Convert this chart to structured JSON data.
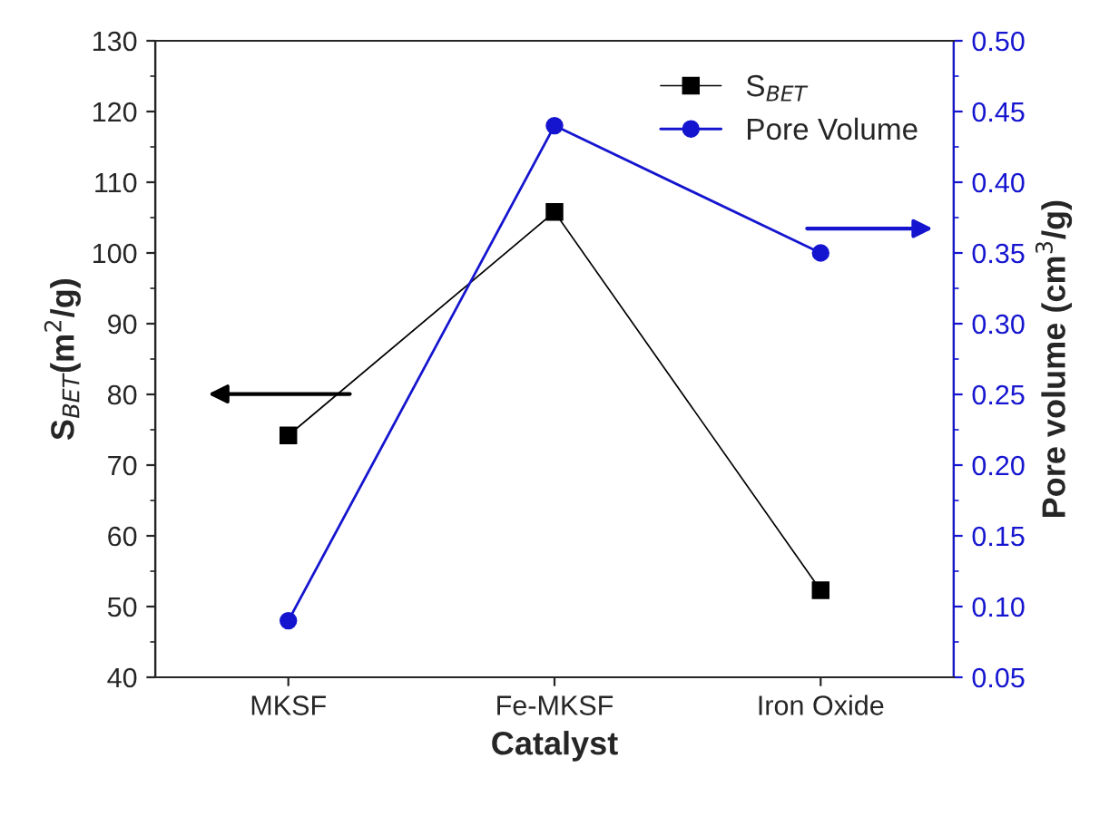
{
  "chart_data": {
    "type": "line",
    "xlabel": "Catalyst",
    "ylabel": "S$_{BET}$(m$^{2}$/g)",
    "y2label": "Pore volume (cm$^{3}$/g)",
    "categories": [
      "MKSF",
      "Fe-MKSF",
      "Iron Oxide"
    ],
    "series": [
      {
        "name": "S$_{BET}$",
        "color": "#000000",
        "values": [
          74.2,
          105.8,
          52.3
        ],
        "marker": "square"
      },
      {
        "name": "Pore Volume",
        "color": "#1515d0",
        "values": [
          0.09,
          0.44,
          0.35
        ],
        "marker": "circle",
        "axis": "y2"
      }
    ],
    "ylim": [
      40,
      130
    ],
    "yticks": [
      40,
      50,
      60,
      70,
      80,
      90,
      100,
      110,
      120,
      130
    ],
    "y2lim": [
      0.05,
      0.5
    ],
    "y2ticks": [
      {
        "value": 0.05,
        "label": "0.05"
      },
      {
        "value": 0.1,
        "label": "0.10"
      },
      {
        "value": 0.15,
        "label": "0.15"
      },
      {
        "value": 0.2,
        "label": "0.20"
      },
      {
        "value": 0.25,
        "label": "0.25"
      },
      {
        "value": 0.3,
        "label": "0.30"
      },
      {
        "value": 0.35,
        "label": "0.35"
      },
      {
        "value": 0.4,
        "label": "0.40"
      },
      {
        "value": 0.45,
        "label": "0.45"
      },
      {
        "value": 0.5,
        "label": "0.50"
      }
    ],
    "legend": "top right",
    "grid": false,
    "line_style": "solid"
  }
}
